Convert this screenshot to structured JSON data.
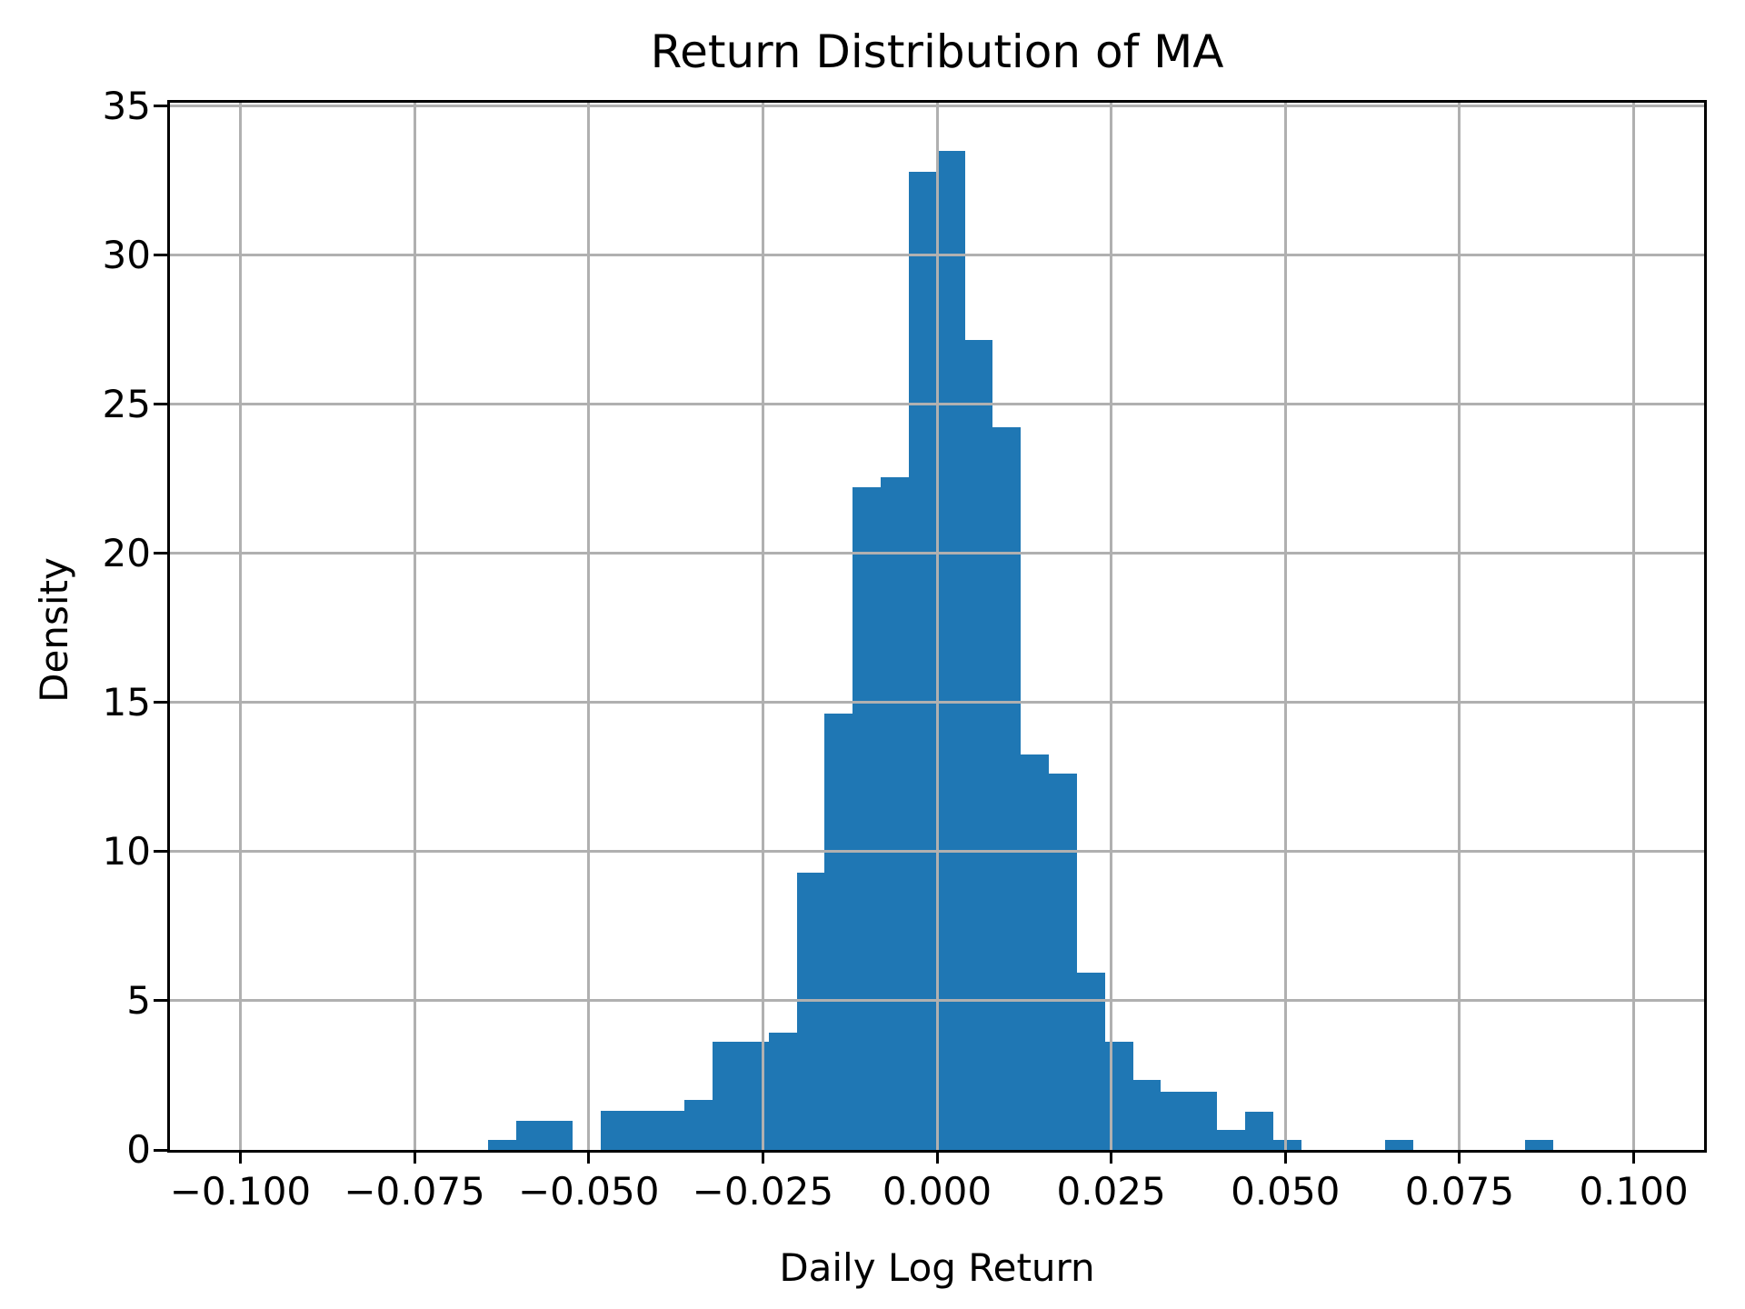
{
  "figure": {
    "background": "#ffffff",
    "text_color": "#000000"
  },
  "chart_data": {
    "type": "bar",
    "subtype": "histogram",
    "title": "Return Distribution of MA",
    "xlabel": "Daily Log Return",
    "ylabel": "Density",
    "xlim": [
      -0.1101,
      0.1101
    ],
    "ylim": [
      0,
      35.12
    ],
    "grid": true,
    "legend": false,
    "grid_color": "#b0b0b0",
    "bar_color": "#1f77b4",
    "axis_color": "#000000",
    "xticks": [
      {
        "value": -0.1,
        "label": "−0.100"
      },
      {
        "value": -0.075,
        "label": "−0.075"
      },
      {
        "value": -0.05,
        "label": "−0.050"
      },
      {
        "value": -0.025,
        "label": "−0.025"
      },
      {
        "value": 0.0,
        "label": "0.000"
      },
      {
        "value": 0.025,
        "label": "0.025"
      },
      {
        "value": 0.05,
        "label": "0.050"
      },
      {
        "value": 0.075,
        "label": "0.075"
      },
      {
        "value": 0.1,
        "label": "0.100"
      }
    ],
    "yticks": [
      {
        "value": 0,
        "label": "0"
      },
      {
        "value": 5,
        "label": "5"
      },
      {
        "value": 10,
        "label": "10"
      },
      {
        "value": 15,
        "label": "15"
      },
      {
        "value": 20,
        "label": "20"
      },
      {
        "value": 25,
        "label": "25"
      },
      {
        "value": 30,
        "label": "30"
      },
      {
        "value": 35,
        "label": "35"
      }
    ],
    "bins": {
      "start": -0.0644,
      "width": 0.004023,
      "count": 38
    },
    "densities": [
      0.34,
      0.99,
      0.99,
      0,
      1.3,
      1.3,
      1.3,
      1.67,
      3.62,
      3.62,
      3.93,
      9.3,
      14.63,
      22.21,
      22.55,
      32.81,
      33.49,
      27.16,
      24.24,
      13.27,
      12.61,
      5.95,
      3.64,
      2.34,
      1.96,
      1.96,
      0.66,
      1.29,
      0.34,
      0,
      0,
      0,
      0.34,
      0,
      0,
      0,
      0,
      0.34
    ]
  }
}
